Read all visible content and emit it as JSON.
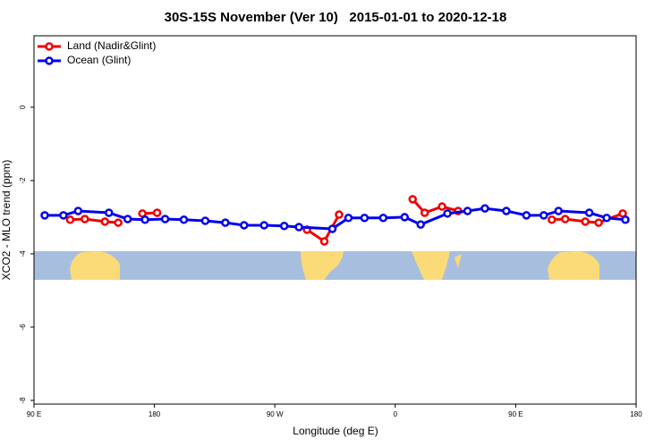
{
  "chart_data": {
    "type": "line",
    "title": "30S-15S November (Ver 10)   2015-01-01 to 2020-12-18",
    "xlabel": "Longitude (deg E)",
    "ylabel": "XCO2 - MLO trend (ppm)",
    "xlim": [
      90,
      540
    ],
    "ylim": [
      -8.1,
      1.95
    ],
    "xticks": [
      {
        "value": 90,
        "label": "90 E"
      },
      180,
      {
        "value": 270,
        "label": "90 W"
      },
      {
        "value": 360,
        "label": "0"
      },
      {
        "value": 450,
        "label": "90 E"
      },
      {
        "value": 540,
        "label": "180"
      }
    ],
    "yticks": [
      0,
      -2,
      -4,
      -6,
      -8
    ],
    "legend": "top-left",
    "series": [
      {
        "name": "Land (Nadir&Glint)",
        "color": "#ee0000",
        "x": [
          117,
          128,
          143,
          153,
          null,
          171,
          182,
          null,
          294,
          307,
          318,
          null,
          373,
          382,
          395,
          407,
          null,
          477,
          487,
          502,
          512,
          530
        ],
        "values": [
          -3.07,
          -3.05,
          -3.12,
          -3.15,
          null,
          -2.9,
          -2.88,
          null,
          -3.34,
          -3.66,
          -2.93,
          null,
          -2.51,
          -2.88,
          -2.71,
          -2.83,
          null,
          -3.07,
          -3.05,
          -3.12,
          -3.15,
          -2.9
        ]
      },
      {
        "name": "Ocean (Glint)",
        "color": "#0000ee",
        "x": [
          98,
          112,
          123,
          146,
          160,
          173,
          188,
          202,
          218,
          233,
          247,
          262,
          277,
          288,
          313,
          325,
          337,
          351,
          367,
          379,
          399,
          414,
          427,
          443,
          458,
          471,
          482,
          505,
          518,
          532
        ],
        "values": [
          -2.95,
          -2.95,
          -2.83,
          -2.88,
          -3.05,
          -3.07,
          -3.05,
          -3.07,
          -3.1,
          -3.15,
          -3.22,
          -3.22,
          -3.24,
          -3.27,
          -3.32,
          -3.02,
          -3.02,
          -3.02,
          -3.0,
          -3.2,
          -2.9,
          -2.83,
          -2.76,
          -2.83,
          -2.95,
          -2.95,
          -2.83,
          -2.88,
          -3.02,
          -3.07
        ]
      }
    ]
  }
}
